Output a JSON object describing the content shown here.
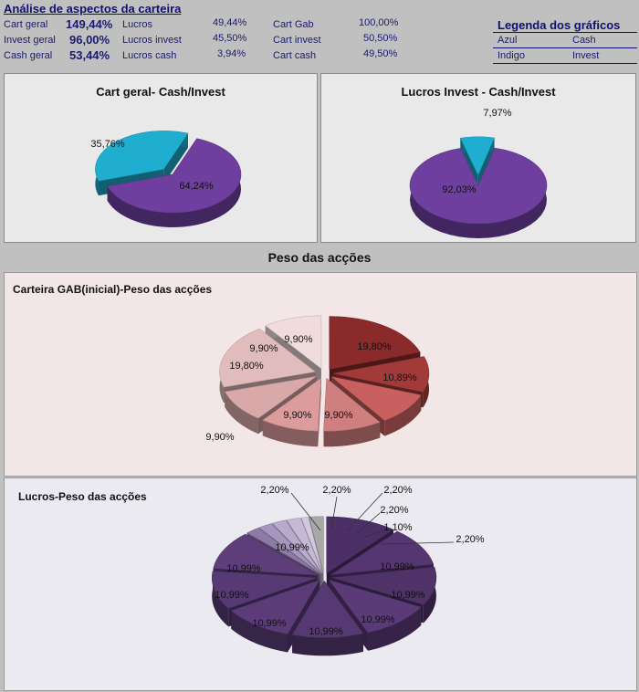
{
  "header": {
    "title": "Análise de aspectos da carteira",
    "col1": [
      {
        "label": "Cart geral",
        "value": "149,44%"
      },
      {
        "label": "Invest geral",
        "value": "96,00%"
      },
      {
        "label": "Cash geral",
        "value": "53,44%"
      }
    ],
    "col2": [
      {
        "label": "Lucros",
        "value": "49,44%"
      },
      {
        "label": "Lucros invest",
        "value": "45,50%"
      },
      {
        "label": "Lucros cash",
        "value": "3,94%"
      }
    ],
    "col3": [
      {
        "label": "Cart Gab",
        "value": "100,00%"
      },
      {
        "label": "Cart invest",
        "value": "50,50%"
      },
      {
        "label": "Cart cash",
        "value": "49,50%"
      }
    ],
    "legend": {
      "title": "Legenda dos gráficos",
      "rows": [
        {
          "color_name": "Azul",
          "meaning": "Cash"
        },
        {
          "color_name": "Indigo",
          "meaning": "Invest"
        }
      ]
    }
  },
  "section_title": "Peso das acções",
  "colors": {
    "cash": "#1faed0",
    "invest": "#6e3f9e",
    "gab": [
      "#8a2a2a",
      "#9e3434",
      "#c75a5a",
      "#d68a8a",
      "#e2a9a9",
      "#d9b5b5",
      "#f2e0e0"
    ],
    "lucros_big": "#5a3d78",
    "lucros_small": "#b7a9c8"
  },
  "chart_data": [
    {
      "type": "pie",
      "title": "Cart geral- Cash/Invest",
      "slices": [
        {
          "label": "35,76%",
          "value": 35.76,
          "color": "#1faed0",
          "exploded": true
        },
        {
          "label": "64,24%",
          "value": 64.24,
          "color": "#6e3f9e",
          "exploded": false
        }
      ]
    },
    {
      "type": "pie",
      "title": "Lucros Invest - Cash/Invest",
      "slices": [
        {
          "label": "7,97%",
          "value": 7.97,
          "color": "#1faed0",
          "exploded": true
        },
        {
          "label": "92,03%",
          "value": 92.03,
          "color": "#6e3f9e",
          "exploded": false
        }
      ]
    },
    {
      "type": "pie",
      "title": "Carteira GAB(inicial)-Peso das acções",
      "slices": [
        {
          "label": "19,80%",
          "value": 19.8,
          "color": "#8a2a2a"
        },
        {
          "label": "10,89%",
          "value": 10.89,
          "color": "#a33a3a"
        },
        {
          "label": "9,90%",
          "value": 9.9,
          "color": "#c86060"
        },
        {
          "label": "9,90%",
          "value": 9.9,
          "color": "#d07f7f"
        },
        {
          "label": "9,90%",
          "value": 9.9,
          "color": "#dc9c9c"
        },
        {
          "label": "9,90%",
          "value": 9.9,
          "color": "#d9a8a8"
        },
        {
          "label": "19,80%",
          "value": 19.8,
          "color": "#e0bcbc"
        },
        {
          "label": "9,90%",
          "value": 9.9,
          "color": "#f0dcdc"
        }
      ]
    },
    {
      "type": "pie",
      "title": "Lucros-Peso das acções",
      "slices": [
        {
          "label": "10,99%",
          "value": 10.99,
          "color": "#4c2f66"
        },
        {
          "label": "10,99%",
          "value": 10.99,
          "color": "#553670"
        },
        {
          "label": "10,99%",
          "value": 10.99,
          "color": "#4e3268"
        },
        {
          "label": "10,99%",
          "value": 10.99,
          "color": "#5a3b77"
        },
        {
          "label": "10,99%",
          "value": 10.99,
          "color": "#563873"
        },
        {
          "label": "10,99%",
          "value": 10.99,
          "color": "#5b3c79"
        },
        {
          "label": "10,99%",
          "value": 10.99,
          "color": "#573a74"
        },
        {
          "label": "10,99%",
          "value": 10.99,
          "color": "#5d3e7b"
        },
        {
          "label": "2,20%",
          "value": 2.2,
          "color": "#8d7aa6"
        },
        {
          "label": "2,20%",
          "value": 2.2,
          "color": "#a696bd"
        },
        {
          "label": "2,20%",
          "value": 2.2,
          "color": "#b7aacb"
        },
        {
          "label": "2,20%",
          "value": 2.2,
          "color": "#c5bad6"
        },
        {
          "label": "1,10%",
          "value": 1.1,
          "color": "#d2c9e0"
        },
        {
          "label": "2,20%",
          "value": 2.2,
          "color": "#a8a8a8"
        }
      ]
    }
  ]
}
